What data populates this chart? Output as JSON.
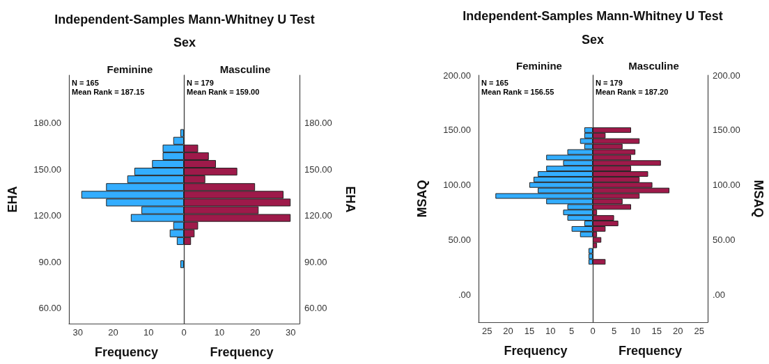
{
  "chart_data": [
    {
      "type": "histogram",
      "orientation": "horizontal",
      "title": "Independent-Samples Mann-Whitney U Test",
      "subtitle": "Sex",
      "ylabel": "EHA",
      "xlabel": "Frequency",
      "annotations": [
        "Feminine",
        "N = 165",
        "Mean Rank = 187.15"
      ],
      "bins": [
        86,
        91,
        96,
        101,
        106,
        111,
        116,
        121,
        126,
        131,
        136,
        141,
        146,
        151,
        156,
        161,
        166,
        171,
        176
      ],
      "values": [
        1,
        0,
        0,
        2,
        4,
        3,
        15,
        12,
        22,
        29,
        22,
        16,
        14,
        9,
        6,
        6,
        3,
        1
      ],
      "color": "#33adff",
      "xlim": [
        32.5,
        0
      ],
      "xticks": [
        30,
        20,
        10
      ],
      "ylim": [
        50,
        211
      ],
      "yticks": [
        {
          "value": 60,
          "label": "60.00"
        },
        {
          "value": 90,
          "label": "90.00"
        },
        {
          "value": 120,
          "label": "120.00"
        },
        {
          "value": 150,
          "label": "150.00"
        },
        {
          "value": 180,
          "label": "180.00"
        }
      ]
    },
    {
      "type": "histogram",
      "orientation": "horizontal",
      "y2label": "EHA",
      "xlabel": "Frequency",
      "annotations": [
        "Masculine",
        "N = 179",
        "Mean Rank = 159.00"
      ],
      "bins": [
        86,
        91,
        96,
        101,
        106,
        111,
        116,
        121,
        126,
        131,
        136,
        141,
        146,
        151,
        156,
        161,
        166,
        171,
        176
      ],
      "values": [
        0,
        0,
        0,
        2,
        3,
        4,
        30,
        21,
        30,
        28,
        20,
        6,
        15,
        9,
        7,
        4,
        0,
        0
      ],
      "color": "#9e1a4a",
      "xlim": [
        0,
        32.5
      ],
      "xticks": [
        0,
        10,
        20,
        30
      ],
      "ylim": [
        50,
        211
      ],
      "y2lim": [
        50,
        211
      ],
      "y2ticks": [
        {
          "value": 60,
          "label": "60.00"
        },
        {
          "value": 90,
          "label": "90.00"
        },
        {
          "value": 120,
          "label": "120.00"
        },
        {
          "value": 150,
          "label": "150.00"
        },
        {
          "value": 180,
          "label": "180.00"
        }
      ]
    },
    {
      "type": "histogram",
      "orientation": "horizontal",
      "title": "Independent-Samples Mann-Whitney U Test",
      "subtitle": "Sex",
      "ylabel": "MSAQ",
      "xlabel": "Frequency",
      "annotations": [
        "Feminine",
        "N = 165",
        "Mean Rank = 156.55"
      ],
      "bins": [
        27.5,
        32.5,
        37.5,
        42.5,
        47.5,
        52.5,
        57.5,
        62.5,
        67.5,
        72.5,
        77.5,
        82.5,
        87.5,
        92.5,
        97.5,
        102.5,
        107.5,
        112.5,
        117.5,
        122.5,
        127.5,
        132.5,
        137.5,
        142.5,
        147.5,
        152.5
      ],
      "values": [
        1,
        1,
        1,
        0,
        0,
        3,
        5,
        2,
        6,
        7,
        6,
        11,
        23,
        13,
        15,
        14,
        13,
        11,
        7,
        11,
        6,
        2,
        3,
        2,
        2
      ],
      "color": "#33adff",
      "xlim": [
        27,
        0
      ],
      "xticks": [
        25,
        20,
        15,
        10,
        5
      ],
      "ylim": [
        -25,
        200
      ],
      "yticks": [
        {
          "value": 0,
          "label": ".00"
        },
        {
          "value": 50,
          "label": "50.00"
        },
        {
          "value": 100,
          "label": "100.00"
        },
        {
          "value": 150,
          "label": "150.00"
        },
        {
          "value": 200,
          "label": "200.00"
        }
      ]
    },
    {
      "type": "histogram",
      "orientation": "horizontal",
      "y2label": "MSAQ",
      "xlabel": "Frequency",
      "annotations": [
        "Masculine",
        "N = 179",
        "Mean Rank = 187.20"
      ],
      "bins": [
        27.5,
        32.5,
        37.5,
        42.5,
        47.5,
        52.5,
        57.5,
        62.5,
        67.5,
        72.5,
        77.5,
        82.5,
        87.5,
        92.5,
        97.5,
        102.5,
        107.5,
        112.5,
        117.5,
        122.5,
        127.5,
        132.5,
        137.5,
        142.5,
        147.5,
        152.5
      ],
      "values": [
        3,
        0,
        0,
        1,
        2,
        1,
        3,
        6,
        5,
        1,
        9,
        7,
        11,
        18,
        14,
        11,
        13,
        9,
        16,
        9,
        10,
        7,
        11,
        3,
        9
      ],
      "color": "#9e1a4a",
      "xlim": [
        0,
        27
      ],
      "xticks": [
        0,
        5,
        10,
        15,
        20,
        25
      ],
      "ylim": [
        -25,
        200
      ],
      "y2lim": [
        -25,
        200
      ],
      "y2ticks": [
        {
          "value": 0,
          "label": ".00"
        },
        {
          "value": 50,
          "label": "50.00"
        },
        {
          "value": 100,
          "label": "100.00"
        },
        {
          "value": 150,
          "label": "150.00"
        },
        {
          "value": 200,
          "label": "200.00"
        }
      ]
    }
  ]
}
